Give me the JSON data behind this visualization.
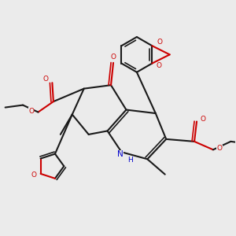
{
  "background_color": "#ebebeb",
  "line_color": "#1a1a1a",
  "red_color": "#cc0000",
  "blue_color": "#0000cc",
  "line_width": 1.5,
  "figsize": [
    3.0,
    3.0
  ],
  "dpi": 100,
  "xlim": [
    0.0,
    10.0
  ],
  "ylim": [
    0.5,
    10.5
  ]
}
